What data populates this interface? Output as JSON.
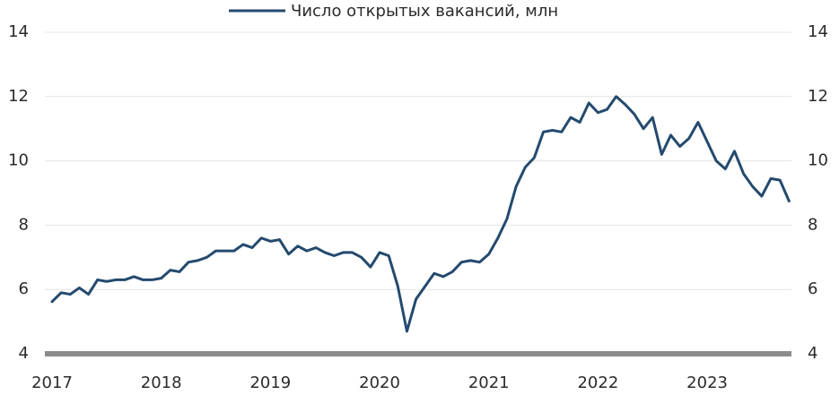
{
  "chart_data": {
    "type": "line",
    "categories": [
      "2017",
      null,
      null,
      null,
      null,
      null,
      null,
      null,
      null,
      null,
      null,
      null,
      "2018",
      null,
      null,
      null,
      null,
      null,
      null,
      null,
      null,
      null,
      null,
      null,
      "2019",
      null,
      null,
      null,
      null,
      null,
      null,
      null,
      null,
      null,
      null,
      null,
      "2020",
      null,
      null,
      null,
      null,
      null,
      null,
      null,
      null,
      null,
      null,
      null,
      "2021",
      null,
      null,
      null,
      null,
      null,
      null,
      null,
      null,
      null,
      null,
      null,
      "2022",
      null,
      null,
      null,
      null,
      null,
      null,
      null,
      null,
      null,
      null,
      null,
      "2023",
      null,
      null,
      null,
      null,
      null,
      null,
      null,
      null,
      null
    ],
    "series": [
      {
        "name": "Число открытых вакансий, млн",
        "color": "#244a6e",
        "values": [
          5.62,
          5.9,
          5.85,
          6.05,
          5.85,
          6.3,
          6.25,
          6.3,
          6.3,
          6.4,
          6.3,
          6.3,
          6.35,
          6.6,
          6.55,
          6.85,
          6.9,
          7.0,
          7.2,
          7.2,
          7.2,
          7.4,
          7.3,
          7.6,
          7.5,
          7.55,
          7.1,
          7.35,
          7.2,
          7.3,
          7.15,
          7.05,
          7.15,
          7.15,
          7.0,
          6.7,
          7.15,
          7.05,
          6.1,
          4.7,
          5.7,
          6.1,
          6.5,
          6.4,
          6.55,
          6.85,
          6.9,
          6.85,
          7.1,
          7.6,
          8.2,
          9.2,
          9.8,
          10.1,
          10.9,
          10.95,
          10.9,
          11.35,
          11.2,
          11.8,
          11.5,
          11.6,
          12.0,
          11.75,
          11.45,
          11.0,
          11.35,
          10.2,
          10.8,
          10.45,
          10.7,
          11.2,
          10.6,
          10.0,
          9.75,
          10.3,
          9.6,
          9.2,
          8.9,
          9.45,
          9.4,
          8.75
        ]
      }
    ],
    "ylim": [
      4,
      14
    ],
    "yticks": [
      4,
      6,
      8,
      10,
      12,
      14
    ],
    "grid": true
  }
}
